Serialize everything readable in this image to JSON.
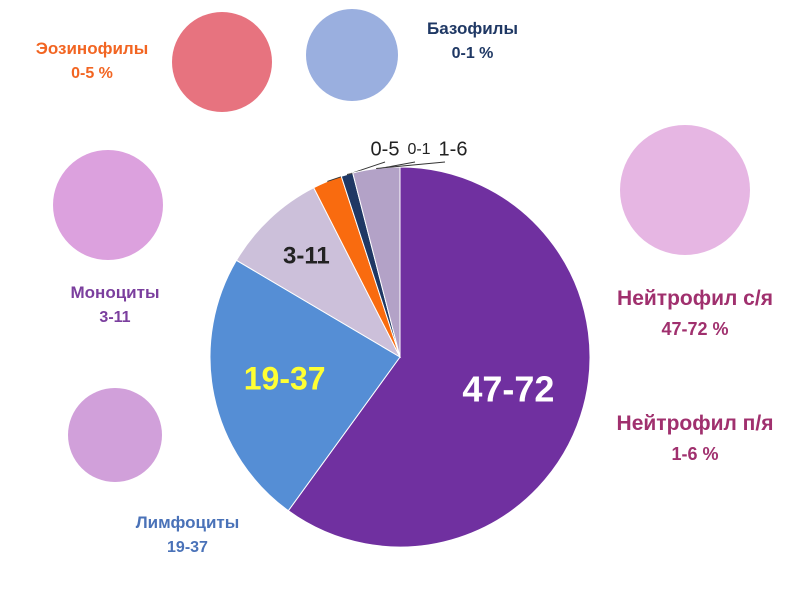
{
  "chart_data": {
    "type": "pie",
    "categories": [
      "47-72",
      "19-37",
      "3-11",
      "0-5",
      "0-1",
      "1-6"
    ],
    "values": [
      60,
      23.5,
      9,
      2.5,
      1,
      4
    ],
    "colors": [
      "#7030a0",
      "#558ed5",
      "#ccc0da",
      "#f96b0f",
      "#1f3864",
      "#b3a2c7"
    ]
  },
  "annotations": [
    {
      "name": "Эозинофилы",
      "range": "0-5 %"
    },
    {
      "name": "Базофилы",
      "range": "0-1 %"
    },
    {
      "name": "Моноциты",
      "range": "3-11"
    },
    {
      "name": "Нейтрофил с/я",
      "range": "47-72 %"
    },
    {
      "name": "Нейтрофил п/я",
      "range": "1-6 %"
    },
    {
      "name": "Лимфоциты",
      "range": "19-37"
    }
  ]
}
